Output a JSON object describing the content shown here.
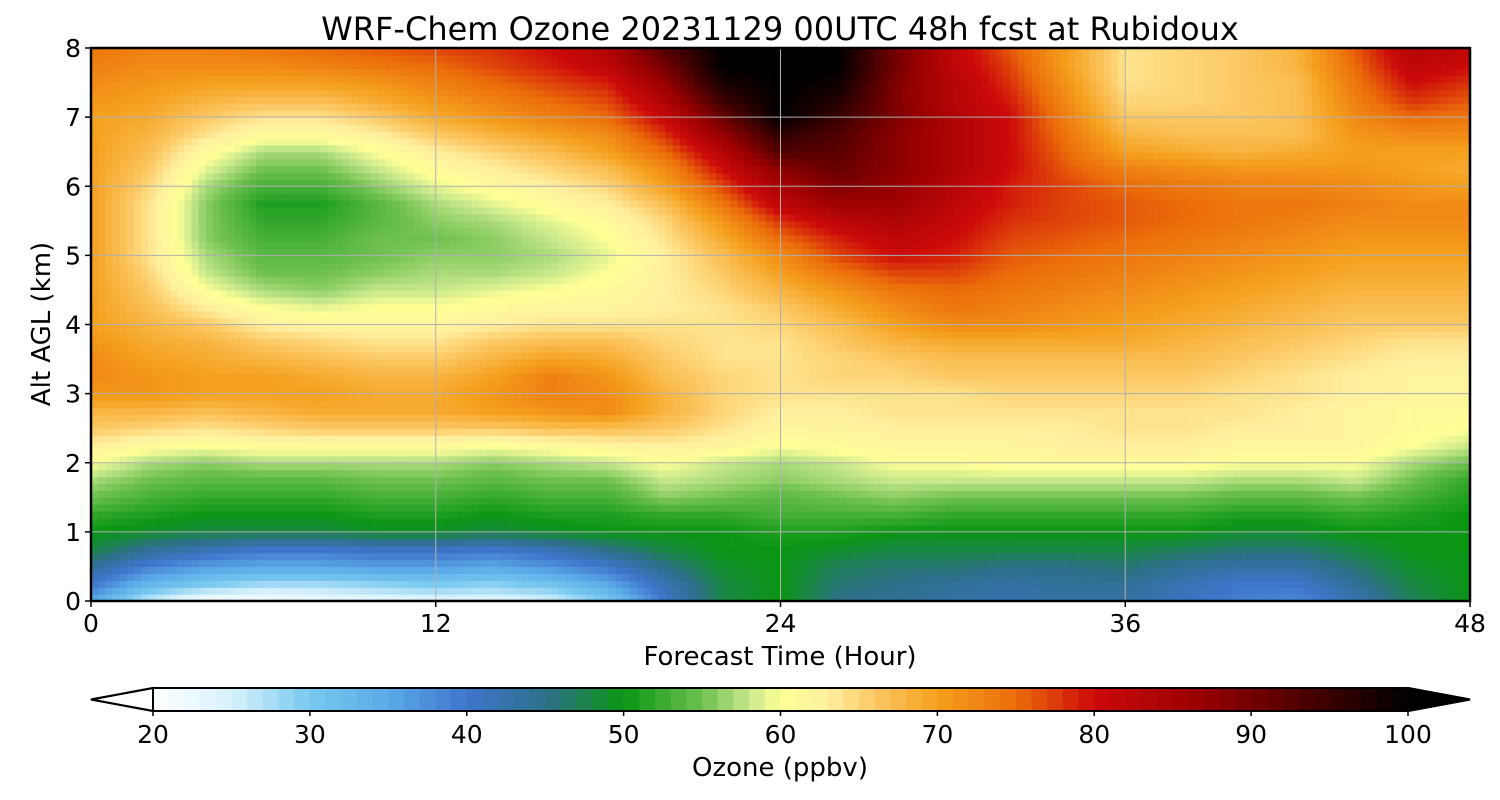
{
  "chart_data": {
    "type": "heatmap",
    "title": "WRF-Chem Ozone  20231129 00UTC 48h fcst at Rubidoux",
    "xlabel": "Forecast Time (Hour)",
    "ylabel": "Alt AGL (km)",
    "xlim": [
      0,
      48
    ],
    "ylim": [
      0,
      8
    ],
    "xticks": [
      "0",
      "12",
      "24",
      "36",
      "48"
    ],
    "yticks": [
      "0",
      "1",
      "2",
      "3",
      "4",
      "5",
      "6",
      "7",
      "8"
    ],
    "grid": true,
    "colorbar": {
      "label": "Ozone  (ppbv)",
      "range": [
        20,
        100
      ],
      "ticks": [
        "20",
        "30",
        "40",
        "50",
        "60",
        "70",
        "80",
        "90",
        "100"
      ],
      "extend": "both",
      "orientation": "horizontal",
      "colors": [
        [
          20,
          "#ffffff"
        ],
        [
          25,
          "#d9f2fc"
        ],
        [
          30,
          "#78c8f0"
        ],
        [
          35,
          "#5aaae8"
        ],
        [
          40,
          "#3f75cc"
        ],
        [
          45,
          "#2e6f8a"
        ],
        [
          50,
          "#0a9614"
        ],
        [
          55,
          "#6ec050"
        ],
        [
          58,
          "#c8e88c"
        ],
        [
          60,
          "#ffff96"
        ],
        [
          63,
          "#fff0a0"
        ],
        [
          66,
          "#fcc864"
        ],
        [
          70,
          "#f5a01e"
        ],
        [
          75,
          "#eb6c0a"
        ],
        [
          80,
          "#cd0a0a"
        ],
        [
          87,
          "#960000"
        ],
        [
          93,
          "#500000"
        ],
        [
          100,
          "#000000"
        ]
      ]
    },
    "grid_z": {
      "x": [
        0,
        2,
        4,
        6,
        8,
        10,
        12,
        14,
        16,
        18,
        20,
        22,
        24,
        26,
        28,
        30,
        32,
        34,
        36,
        38,
        40,
        42,
        44,
        46,
        48
      ],
      "y": [
        0,
        0.25,
        0.5,
        0.75,
        1,
        1.25,
        1.5,
        1.75,
        2,
        2.25,
        2.5,
        2.75,
        3,
        3.25,
        3.5,
        3.75,
        4,
        4.25,
        4.5,
        4.75,
        5,
        5.25,
        5.5,
        5.75,
        6,
        6.25,
        6.5,
        6.75,
        7,
        7.25,
        7.5,
        7.75,
        8
      ],
      "z": [
        [
          35,
          26,
          21,
          21,
          22,
          23,
          24,
          24,
          25,
          30,
          40,
          48,
          50,
          45,
          44,
          43,
          42,
          43,
          43,
          41,
          39,
          38,
          42,
          47,
          50
        ],
        [
          40,
          33,
          30,
          28,
          28,
          29,
          30,
          29,
          31,
          35,
          42,
          48,
          50,
          46,
          45,
          44,
          43,
          44,
          44,
          42,
          40,
          40,
          44,
          48,
          50
        ],
        [
          44,
          39,
          36,
          35,
          35,
          36,
          36,
          35,
          37,
          40,
          45,
          49,
          50,
          47,
          46,
          46,
          45,
          45,
          46,
          44,
          43,
          43,
          46,
          49,
          50
        ],
        [
          48,
          44,
          42,
          40,
          40,
          41,
          41,
          40,
          42,
          45,
          48,
          50,
          50,
          49,
          48,
          48,
          48,
          48,
          48,
          47,
          46,
          46,
          48,
          50,
          50
        ],
        [
          50,
          49,
          48,
          48,
          48,
          49,
          49,
          48,
          49,
          50,
          50,
          50,
          51,
          51,
          50,
          50,
          50,
          50,
          50,
          50,
          49,
          49,
          50,
          50,
          50
        ],
        [
          52,
          51,
          50,
          50,
          50,
          51,
          51,
          50,
          51,
          51,
          52,
          52,
          53,
          53,
          53,
          52,
          52,
          52,
          52,
          52,
          51,
          51,
          52,
          51,
          50
        ],
        [
          55,
          53,
          52,
          52,
          52,
          53,
          53,
          52,
          53,
          53,
          56,
          55,
          54,
          55,
          56,
          55,
          55,
          55,
          55,
          55,
          54,
          54,
          55,
          53,
          51
        ],
        [
          57,
          55,
          54,
          54,
          54,
          55,
          55,
          54,
          55,
          55,
          58,
          57,
          56,
          57,
          58,
          58,
          58,
          58,
          58,
          58,
          57,
          57,
          58,
          55,
          52
        ],
        [
          60,
          57,
          56,
          57,
          57,
          57,
          57,
          56,
          57,
          58,
          60,
          58,
          57,
          58,
          60,
          60,
          61,
          61,
          61,
          61,
          60,
          60,
          60,
          57,
          55
        ],
        [
          63,
          61,
          60,
          61,
          61,
          61,
          61,
          60,
          61,
          62,
          63,
          62,
          60,
          61,
          62,
          62,
          62,
          63,
          63,
          63,
          62,
          62,
          62,
          60,
          58
        ],
        [
          66,
          65,
          64,
          65,
          66,
          66,
          66,
          66,
          67,
          67,
          66,
          64,
          62,
          62,
          63,
          63,
          63,
          63,
          64,
          64,
          63,
          63,
          62,
          61,
          60
        ],
        [
          68,
          68,
          67,
          68,
          69,
          69,
          69,
          70,
          71,
          72,
          68,
          65,
          63,
          63,
          64,
          64,
          64,
          64,
          64,
          64,
          64,
          63,
          62,
          61,
          61
        ],
        [
          71,
          71,
          70,
          70,
          70,
          69,
          69,
          71,
          73,
          72,
          68,
          65,
          64,
          64,
          64,
          64,
          65,
          65,
          65,
          65,
          64,
          64,
          63,
          62,
          62
        ],
        [
          72,
          71,
          70,
          70,
          69,
          68,
          68,
          70,
          73,
          71,
          67,
          65,
          64,
          65,
          65,
          66,
          66,
          66,
          66,
          66,
          65,
          64,
          63,
          62,
          62
        ],
        [
          72,
          70,
          69,
          68,
          67,
          66,
          66,
          68,
          70,
          69,
          66,
          64,
          64,
          65,
          66,
          67,
          67,
          67,
          67,
          67,
          66,
          65,
          64,
          63,
          63
        ],
        [
          71,
          69,
          68,
          66,
          65,
          64,
          64,
          66,
          67,
          67,
          65,
          64,
          64,
          66,
          68,
          69,
          69,
          69,
          69,
          68,
          67,
          66,
          65,
          64,
          64
        ],
        [
          70,
          68,
          66,
          63,
          62,
          62,
          62,
          63,
          64,
          64,
          64,
          64,
          65,
          67,
          70,
          72,
          72,
          71,
          70,
          69,
          68,
          67,
          66,
          66,
          66
        ],
        [
          70,
          67,
          63,
          60,
          59,
          60,
          60,
          61,
          62,
          62,
          63,
          64,
          66,
          69,
          72,
          74,
          73,
          72,
          71,
          70,
          69,
          68,
          67,
          67,
          67
        ],
        [
          70,
          66,
          60,
          57,
          56,
          58,
          58,
          59,
          60,
          61,
          63,
          65,
          68,
          71,
          74,
          75,
          74,
          73,
          72,
          71,
          70,
          69,
          68,
          68,
          68
        ],
        [
          70,
          65,
          58,
          55,
          55,
          56,
          57,
          57,
          58,
          60,
          63,
          66,
          70,
          74,
          77,
          77,
          75,
          74,
          73,
          72,
          71,
          70,
          69,
          69,
          69
        ],
        [
          70,
          64,
          57,
          54,
          54,
          55,
          56,
          56,
          57,
          59,
          63,
          67,
          72,
          77,
          80,
          79,
          76,
          75,
          74,
          73,
          72,
          71,
          70,
          70,
          70
        ],
        [
          70,
          64,
          56,
          53,
          53,
          55,
          55,
          56,
          58,
          60,
          64,
          69,
          75,
          79,
          82,
          80,
          77,
          76,
          75,
          74,
          73,
          72,
          71,
          71,
          71
        ],
        [
          70,
          64,
          56,
          52,
          52,
          54,
          56,
          57,
          59,
          61,
          65,
          71,
          78,
          82,
          84,
          81,
          78,
          77,
          76,
          75,
          74,
          73,
          72,
          72,
          72
        ],
        [
          70,
          64,
          56,
          51,
          51,
          54,
          57,
          59,
          61,
          63,
          67,
          74,
          82,
          86,
          86,
          82,
          79,
          77,
          76,
          75,
          74,
          74,
          73,
          72,
          72
        ],
        [
          70,
          65,
          57,
          53,
          53,
          56,
          59,
          61,
          63,
          65,
          70,
          77,
          85,
          89,
          87,
          83,
          79,
          77,
          75,
          74,
          73,
          73,
          72,
          71,
          70
        ],
        [
          70,
          66,
          59,
          55,
          55,
          58,
          61,
          63,
          65,
          67,
          72,
          80,
          88,
          91,
          88,
          84,
          80,
          76,
          73,
          72,
          71,
          71,
          71,
          70,
          69
        ],
        [
          70,
          67,
          61,
          57,
          57,
          60,
          63,
          65,
          67,
          70,
          75,
          83,
          93,
          92,
          88,
          84,
          80,
          75,
          70,
          69,
          68,
          69,
          70,
          70,
          70
        ],
        [
          70,
          68,
          64,
          61,
          61,
          63,
          66,
          68,
          70,
          72,
          78,
          87,
          96,
          93,
          88,
          84,
          80,
          74,
          68,
          67,
          67,
          67,
          71,
          72,
          72
        ],
        [
          70,
          69,
          66,
          64,
          64,
          66,
          69,
          71,
          73,
          75,
          81,
          91,
          100,
          95,
          89,
          84,
          80,
          73,
          66,
          66,
          66,
          67,
          72,
          75,
          74
        ],
        [
          71,
          70,
          68,
          67,
          67,
          69,
          71,
          73,
          75,
          77,
          84,
          95,
          100,
          97,
          89,
          83,
          79,
          72,
          65,
          65,
          66,
          67,
          73,
          78,
          76
        ],
        [
          72,
          71,
          70,
          70,
          70,
          71,
          73,
          75,
          77,
          79,
          87,
          98,
          100,
          99,
          89,
          83,
          78,
          71,
          64,
          65,
          66,
          67,
          74,
          80,
          78
        ],
        [
          73,
          72,
          72,
          72,
          73,
          74,
          75,
          77,
          79,
          82,
          90,
          100,
          100,
          100,
          90,
          82,
          77,
          70,
          64,
          65,
          66,
          68,
          75,
          82,
          80
        ],
        [
          74,
          73,
          73,
          74,
          75,
          76,
          77,
          78,
          80,
          84,
          93,
          100,
          100,
          100,
          90,
          82,
          76,
          70,
          64,
          65,
          66,
          68,
          76,
          83,
          82
        ]
      ]
    }
  }
}
